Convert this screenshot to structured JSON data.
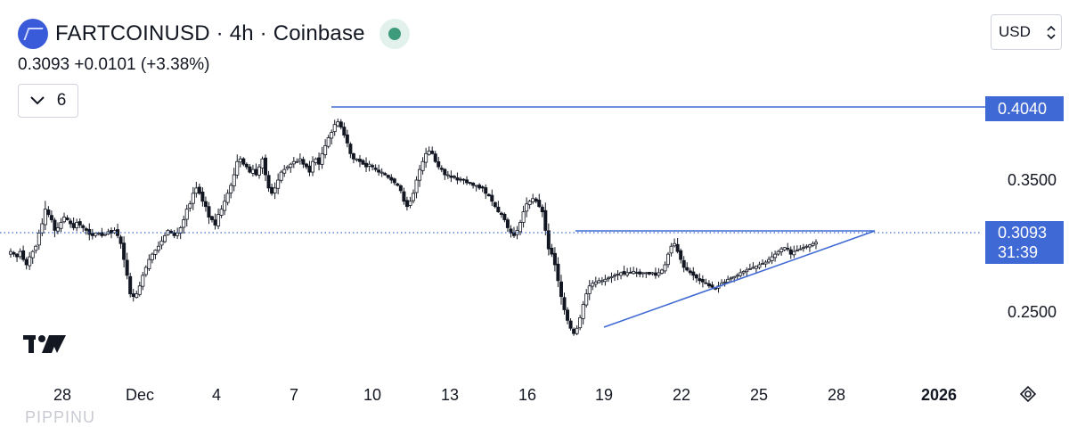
{
  "header": {
    "title": "FARTCOINUSD · 4h · Coinbase",
    "quote": "0.3093  +0.0101 (+3.38%)",
    "indicator_count": "6",
    "currency": "USD",
    "logo_icon": "coin-logo-icon",
    "status_icon": "market-open-dot-icon"
  },
  "chart_data": {
    "type": "candlestick",
    "symbol": "FARTCOINUSD",
    "interval": "4h",
    "exchange": "Coinbase",
    "ylim": [
      0.228,
      0.418
    ],
    "y_ticks": [
      "0.3500",
      "0.2500"
    ],
    "x_ticks": [
      "28",
      "Dec",
      "4",
      "7",
      "10",
      "13",
      "16",
      "19",
      "22",
      "25",
      "28",
      "2026"
    ],
    "last_price": "0.3093",
    "countdown": "31:39",
    "horizontal_level": "0.4040",
    "close_series": [
      0.302,
      0.3,
      0.298,
      0.302,
      0.296,
      0.292,
      0.298,
      0.302,
      0.306,
      0.316,
      0.323,
      0.334,
      0.33,
      0.326,
      0.318,
      0.32,
      0.324,
      0.328,
      0.326,
      0.323,
      0.32,
      0.324,
      0.322,
      0.32,
      0.318,
      0.315,
      0.314,
      0.316,
      0.316,
      0.314,
      0.315,
      0.317,
      0.316,
      0.318,
      0.314,
      0.308,
      0.296,
      0.284,
      0.27,
      0.268,
      0.27,
      0.276,
      0.284,
      0.29,
      0.296,
      0.3,
      0.303,
      0.306,
      0.31,
      0.314,
      0.318,
      0.316,
      0.314,
      0.316,
      0.32,
      0.326,
      0.334,
      0.338,
      0.346,
      0.35,
      0.346,
      0.34,
      0.336,
      0.328,
      0.326,
      0.322,
      0.33,
      0.334,
      0.34,
      0.346,
      0.352,
      0.36,
      0.37,
      0.372,
      0.368,
      0.366,
      0.362,
      0.364,
      0.36,
      0.366,
      0.372,
      0.36,
      0.35,
      0.346,
      0.35,
      0.356,
      0.362,
      0.364,
      0.366,
      0.368,
      0.37,
      0.37,
      0.372,
      0.368,
      0.366,
      0.362,
      0.37,
      0.372,
      0.368,
      0.376,
      0.382,
      0.388,
      0.392,
      0.398,
      0.4,
      0.396,
      0.39,
      0.384,
      0.376,
      0.372,
      0.372,
      0.37,
      0.368,
      0.366,
      0.368,
      0.366,
      0.364,
      0.362,
      0.362,
      0.36,
      0.358,
      0.356,
      0.354,
      0.352,
      0.348,
      0.34,
      0.336,
      0.34,
      0.346,
      0.356,
      0.364,
      0.37,
      0.376,
      0.378,
      0.376,
      0.37,
      0.366,
      0.364,
      0.36,
      0.36,
      0.358,
      0.358,
      0.356,
      0.356,
      0.356,
      0.354,
      0.354,
      0.352,
      0.352,
      0.35,
      0.35,
      0.346,
      0.344,
      0.34,
      0.336,
      0.332,
      0.33,
      0.326,
      0.32,
      0.316,
      0.314,
      0.318,
      0.324,
      0.332,
      0.338,
      0.34,
      0.342,
      0.34,
      0.336,
      0.332,
      0.318,
      0.304,
      0.3,
      0.292,
      0.28,
      0.268,
      0.258,
      0.25,
      0.244,
      0.24,
      0.244,
      0.252,
      0.262,
      0.27,
      0.276,
      0.278,
      0.279,
      0.28,
      0.28,
      0.281,
      0.282,
      0.283,
      0.284,
      0.285,
      0.286,
      0.285,
      0.286,
      0.286,
      0.287,
      0.286,
      0.285,
      0.286,
      0.286,
      0.285,
      0.286,
      0.284,
      0.286,
      0.288,
      0.292,
      0.3,
      0.306,
      0.308,
      0.302,
      0.296,
      0.29,
      0.288,
      0.286,
      0.284,
      0.282,
      0.28,
      0.279,
      0.278,
      0.276,
      0.275,
      0.274,
      0.276,
      0.278,
      0.279,
      0.281,
      0.282,
      0.283,
      0.284,
      0.286,
      0.287,
      0.288,
      0.289,
      0.29,
      0.291,
      0.292,
      0.293,
      0.294,
      0.296,
      0.298,
      0.3,
      0.302,
      0.304,
      0.305,
      0.304,
      0.3,
      0.302,
      0.303,
      0.304,
      0.305,
      0.306,
      0.307,
      0.308,
      0.309
    ]
  }
}
